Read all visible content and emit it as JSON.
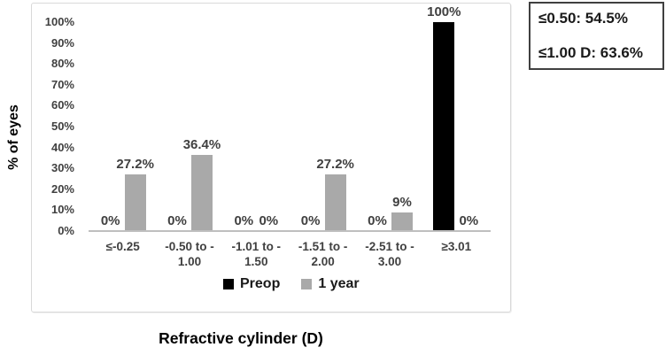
{
  "chart_data": {
    "type": "bar",
    "title": "",
    "xlabel": "Refractive cylinder (D)",
    "ylabel": "% of eyes",
    "ylim": [
      0,
      100
    ],
    "grid": false,
    "legend_position": "bottom",
    "yticks": [
      "100%",
      "90%",
      "80%",
      "70%",
      "60%",
      "50%",
      "40%",
      "30%",
      "20%",
      "10%",
      "0%"
    ],
    "categories": [
      {
        "label": "≤-0.25",
        "lines": [
          "≤-0.25"
        ]
      },
      {
        "label": "-0.50 to -1.00",
        "lines": [
          "-0.50 to -",
          "1.00"
        ]
      },
      {
        "label": "-1.01 to -1.50",
        "lines": [
          "-1.01 to -",
          "1.50"
        ]
      },
      {
        "label": "-1.51 to -2.00",
        "lines": [
          "-1.51 to -",
          "2.00"
        ]
      },
      {
        "label": "-2.51 to -3.00",
        "lines": [
          "-2.51 to -",
          "3.00"
        ]
      },
      {
        "label": "≥3.01",
        "lines": [
          "≥3.01"
        ]
      }
    ],
    "series": [
      {
        "name": "Preop",
        "color": "#000000",
        "values": [
          0,
          0,
          0,
          0,
          0,
          100
        ],
        "labels": [
          "0%",
          "0%",
          "0%",
          "0%",
          "0%",
          "100%"
        ]
      },
      {
        "name": "1 year",
        "color": "#a9a9a9",
        "values": [
          27.2,
          36.4,
          0,
          27.2,
          9,
          0
        ],
        "labels": [
          "27.2%",
          "36.4%",
          "0%",
          "27.2%",
          "9%",
          "0%"
        ]
      }
    ]
  },
  "annotation_box": {
    "lines": [
      "≤0.50: 54.5%",
      "≤1.00 D: 63.6%"
    ]
  },
  "colors": {
    "preop_bar": "#000000",
    "one_year_bar": "#a9a9a9",
    "data_label_text": "#404040",
    "tick_text": "#404040",
    "axis_line": "#bfbfbf",
    "frame_border": "#d9d9d9",
    "annotation_border": "#404040"
  }
}
